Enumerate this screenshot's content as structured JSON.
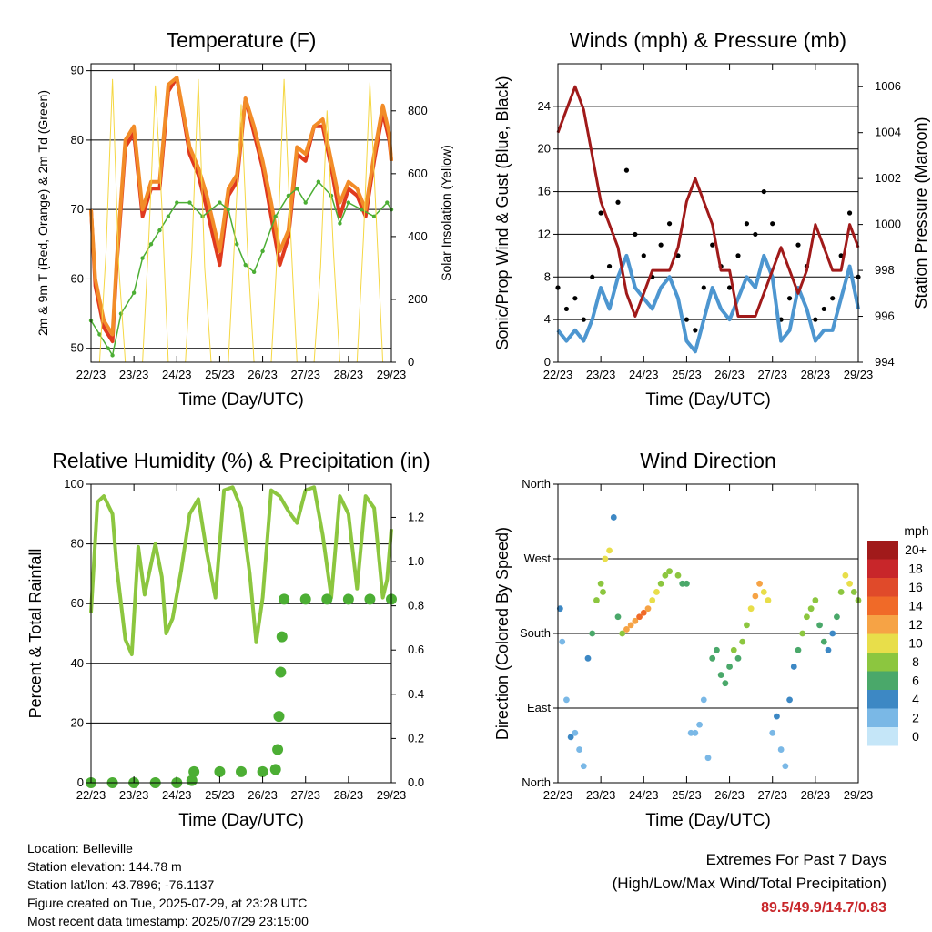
{
  "info": {
    "location": "Location: Belleville",
    "elevation": "Station elevation: 144.78 m",
    "latlon": "Station lat/lon: 43.7896; -76.1137",
    "created": "Figure created on Tue, 2025-07-29, at 23:28 UTC",
    "recent": "Most recent data timestamp: 2025/07/29 23:15:00"
  },
  "extremes": {
    "title": "Extremes For Past 7 Days",
    "subtitle": "(High/Low/Max Wind/Total Precipitation)",
    "values": "89.5/49.9/14.7/0.83"
  },
  "colors": {
    "temp2m": "#e03a1e",
    "temp9m": "#f28c28",
    "dewpoint": "#4cae34",
    "solar": "#f5d742",
    "gust": "#000000",
    "wind": "#4d96d0",
    "pressure": "#a01a1a",
    "rh": "#8cc63f",
    "precip": "#4cae34"
  },
  "chart_data": [
    {
      "type": "line",
      "title": "Temperature (F)",
      "xlabel": "Time (Day/UTC)",
      "ylabel": "2m & 9m T (Red, Orange) & 2m Td (Green)",
      "y2label": "Solar Insolation (Yellow)",
      "x_ticks": [
        "22/23",
        "23/23",
        "24/23",
        "25/23",
        "26/23",
        "27/23",
        "28/23",
        "29/23"
      ],
      "xlim": [
        0,
        7
      ],
      "ylim": [
        48,
        91
      ],
      "y_ticks": [
        50,
        60,
        70,
        80,
        90
      ],
      "y2lim": [
        0,
        950
      ],
      "y2_ticks": [
        0,
        200,
        400,
        600,
        800
      ],
      "grid": true,
      "series": [
        {
          "name": "2m T",
          "axis": "left",
          "x": [
            0,
            0.1,
            0.3,
            0.5,
            0.6,
            0.8,
            1.0,
            1.2,
            1.4,
            1.6,
            1.8,
            2.0,
            2.3,
            2.5,
            2.7,
            3.0,
            3.2,
            3.4,
            3.6,
            3.8,
            4.0,
            4.2,
            4.4,
            4.6,
            4.8,
            5.0,
            5.2,
            5.4,
            5.6,
            5.8,
            6.0,
            6.2,
            6.4,
            6.6,
            6.8,
            6.95,
            7.0
          ],
          "y": [
            70,
            59,
            53,
            51,
            62,
            79,
            81,
            69,
            73,
            73,
            87,
            89,
            78,
            75,
            70,
            62,
            72,
            74,
            86,
            81,
            76,
            69,
            62,
            66,
            78,
            77,
            82,
            82,
            76,
            69,
            73,
            72,
            69,
            77,
            84,
            80,
            77
          ]
        },
        {
          "name": "9m T",
          "axis": "left",
          "x": [
            0,
            0.1,
            0.3,
            0.5,
            0.6,
            0.8,
            1.0,
            1.2,
            1.4,
            1.6,
            1.8,
            2.0,
            2.3,
            2.5,
            2.7,
            3.0,
            3.2,
            3.4,
            3.6,
            3.8,
            4.0,
            4.2,
            4.4,
            4.6,
            4.8,
            5.0,
            5.2,
            5.4,
            5.6,
            5.8,
            6.0,
            6.2,
            6.4,
            6.6,
            6.8,
            6.95,
            7.0
          ],
          "y": [
            70,
            60,
            54,
            52,
            63,
            80,
            82,
            70,
            74,
            74,
            88,
            89,
            79,
            76,
            72,
            64,
            73,
            75,
            86,
            82,
            77,
            71,
            64,
            67,
            79,
            78,
            82,
            83,
            77,
            71,
            74,
            73,
            70,
            78,
            85,
            81,
            77
          ]
        },
        {
          "name": "2m Td",
          "axis": "left",
          "x": [
            0,
            0.2,
            0.4,
            0.5,
            0.7,
            1.0,
            1.2,
            1.4,
            1.6,
            1.8,
            2.0,
            2.3,
            2.6,
            3.0,
            3.2,
            3.4,
            3.6,
            3.8,
            4.0,
            4.3,
            4.6,
            4.8,
            5.0,
            5.3,
            5.6,
            5.8,
            6.0,
            6.3,
            6.6,
            6.9,
            7.0
          ],
          "y": [
            54,
            52,
            50,
            49,
            55,
            58,
            63,
            65,
            67,
            69,
            71,
            71,
            69,
            71,
            70,
            65,
            62,
            61,
            64,
            69,
            72,
            73,
            71,
            74,
            72,
            68,
            71,
            70,
            69,
            71,
            70
          ]
        },
        {
          "name": "Solar",
          "axis": "right",
          "x": [
            0.0,
            0.2,
            0.35,
            0.5,
            0.65,
            0.8,
            1.0,
            1.2,
            1.35,
            1.5,
            1.65,
            1.8,
            2.0,
            2.2,
            2.35,
            2.5,
            2.65,
            2.8,
            3.0,
            3.2,
            3.35,
            3.5,
            3.65,
            3.8,
            4.0,
            4.2,
            4.35,
            4.5,
            4.65,
            4.8,
            5.0,
            5.2,
            5.35,
            5.5,
            5.65,
            5.8,
            6.0,
            6.2,
            6.35,
            6.5,
            6.65,
            6.8,
            7.0
          ],
          "y": [
            0,
            0,
            350,
            900,
            300,
            0,
            0,
            0,
            400,
            880,
            500,
            0,
            0,
            0,
            350,
            900,
            300,
            0,
            0,
            0,
            400,
            820,
            350,
            0,
            0,
            0,
            380,
            900,
            420,
            0,
            0,
            0,
            300,
            800,
            350,
            0,
            0,
            0,
            400,
            890,
            450,
            0,
            0
          ]
        }
      ]
    },
    {
      "type": "line",
      "title": "Winds (mph) & Pressure (mb)",
      "xlabel": "Time (Day/UTC)",
      "ylabel": "Sonic/Prop Wind & Gust (Blue, Black)",
      "y2label": "Station Pressure (Maroon)",
      "x_ticks": [
        "22/23",
        "23/23",
        "24/23",
        "25/23",
        "26/23",
        "27/23",
        "28/23",
        "29/23"
      ],
      "xlim": [
        0,
        7
      ],
      "ylim": [
        0,
        28
      ],
      "y_ticks": [
        0,
        4,
        8,
        12,
        16,
        20,
        24
      ],
      "y2lim": [
        994,
        1007
      ],
      "y2_ticks": [
        994,
        996,
        998,
        1000,
        1002,
        1004,
        1006
      ],
      "grid": true,
      "series": [
        {
          "name": "Gust",
          "axis": "left",
          "x": [
            0,
            0.2,
            0.4,
            0.6,
            0.8,
            1.0,
            1.2,
            1.4,
            1.6,
            1.8,
            2.0,
            2.2,
            2.4,
            2.6,
            2.8,
            3.0,
            3.2,
            3.4,
            3.6,
            3.8,
            4.0,
            4.2,
            4.4,
            4.6,
            4.8,
            5.0,
            5.2,
            5.4,
            5.6,
            5.8,
            6.0,
            6.2,
            6.4,
            6.6,
            6.8,
            7.0
          ],
          "y": [
            7,
            5,
            6,
            4,
            8,
            14,
            9,
            15,
            18,
            12,
            10,
            8,
            11,
            13,
            10,
            4,
            3,
            7,
            11,
            9,
            7,
            10,
            13,
            12,
            16,
            13,
            4,
            6,
            11,
            9,
            4,
            5,
            6,
            10,
            14,
            8
          ]
        },
        {
          "name": "Wind",
          "axis": "left",
          "x": [
            0,
            0.2,
            0.4,
            0.6,
            0.8,
            1.0,
            1.2,
            1.4,
            1.6,
            1.8,
            2.0,
            2.2,
            2.4,
            2.6,
            2.8,
            3.0,
            3.2,
            3.4,
            3.6,
            3.8,
            4.0,
            4.2,
            4.4,
            4.6,
            4.8,
            5.0,
            5.2,
            5.4,
            5.6,
            5.8,
            6.0,
            6.2,
            6.4,
            6.6,
            6.8,
            7.0
          ],
          "y": [
            3,
            2,
            3,
            2,
            4,
            7,
            5,
            8,
            10,
            7,
            6,
            5,
            7,
            8,
            6,
            2,
            1,
            4,
            7,
            5,
            4,
            6,
            8,
            7,
            10,
            8,
            2,
            3,
            7,
            5,
            2,
            3,
            3,
            6,
            9,
            5
          ]
        },
        {
          "name": "Pressure",
          "axis": "right",
          "x": [
            0,
            0.2,
            0.4,
            0.6,
            0.8,
            1.0,
            1.2,
            1.4,
            1.6,
            1.8,
            2.0,
            2.2,
            2.4,
            2.6,
            2.8,
            3.0,
            3.2,
            3.4,
            3.6,
            3.8,
            4.0,
            4.2,
            4.4,
            4.6,
            4.8,
            5.0,
            5.2,
            5.4,
            5.6,
            5.8,
            6.0,
            6.2,
            6.4,
            6.6,
            6.8,
            7.0
          ],
          "y": [
            1004,
            1005,
            1006,
            1005,
            1003,
            1001,
            1000,
            999,
            997,
            996,
            997,
            998,
            998,
            998,
            999,
            1001,
            1002,
            1001,
            1000,
            998,
            998,
            996,
            996,
            996,
            997,
            998,
            999,
            998,
            997,
            998,
            1000,
            999,
            998,
            998,
            1000,
            999
          ]
        }
      ]
    },
    {
      "type": "line",
      "title": "Relative Humidity (%) & Precipitation (in)",
      "xlabel": "Time (Day/UTC)",
      "ylabel": "Percent & Total Rainfall",
      "x_ticks": [
        "22/23",
        "23/23",
        "24/23",
        "25/23",
        "26/23",
        "27/23",
        "28/23",
        "29/23"
      ],
      "xlim": [
        0,
        7
      ],
      "ylim": [
        0,
        100
      ],
      "y_ticks": [
        0,
        20,
        40,
        60,
        80,
        100
      ],
      "y2lim": [
        0,
        1.35
      ],
      "y2_ticks": [
        0.0,
        0.2,
        0.4,
        0.6,
        0.8,
        1.0,
        1.2
      ],
      "grid": true,
      "series": [
        {
          "name": "RH",
          "axis": "left",
          "x": [
            0,
            0.15,
            0.3,
            0.5,
            0.6,
            0.8,
            0.95,
            1.1,
            1.25,
            1.5,
            1.65,
            1.75,
            1.9,
            2.1,
            2.3,
            2.5,
            2.7,
            2.9,
            3.1,
            3.3,
            3.5,
            3.7,
            3.85,
            4.0,
            4.2,
            4.4,
            4.6,
            4.8,
            5.0,
            5.2,
            5.4,
            5.6,
            5.8,
            6.0,
            6.2,
            6.4,
            6.6,
            6.8,
            6.9,
            7.0
          ],
          "y": [
            57,
            94,
            96,
            90,
            72,
            48,
            43,
            79,
            63,
            80,
            69,
            50,
            55,
            71,
            90,
            95,
            77,
            62,
            98,
            99,
            92,
            70,
            47,
            62,
            98,
            96,
            91,
            87,
            98,
            99,
            83,
            62,
            96,
            90,
            65,
            96,
            92,
            62,
            68,
            85
          ]
        },
        {
          "name": "Precip",
          "axis": "right",
          "x": [
            0,
            0.5,
            1.0,
            1.5,
            2.0,
            2.35,
            2.4,
            3.0,
            3.5,
            4.0,
            4.3,
            4.35,
            4.38,
            4.42,
            4.45,
            4.5,
            5.0,
            5.5,
            6.0,
            6.5,
            7.0
          ],
          "y": [
            0.0,
            0.0,
            0.0,
            0.0,
            0.0,
            0.01,
            0.05,
            0.05,
            0.05,
            0.05,
            0.06,
            0.15,
            0.3,
            0.5,
            0.66,
            0.83,
            0.83,
            0.83,
            0.83,
            0.83,
            0.83
          ]
        }
      ]
    },
    {
      "type": "scatter",
      "title": "Wind Direction",
      "xlabel": "Time (Day/UTC)",
      "ylabel": "Direction (Colored By Speed)",
      "x_ticks": [
        "22/23",
        "23/23",
        "24/23",
        "25/23",
        "26/23",
        "27/23",
        "28/23",
        "29/23"
      ],
      "xlim": [
        0,
        7
      ],
      "ylim": [
        0,
        360
      ],
      "y_ticks": [
        0,
        90,
        180,
        270,
        360
      ],
      "y_tick_labels": [
        "North",
        "East",
        "South",
        "West",
        "North"
      ],
      "legend_title": "mph",
      "legend_labels": [
        "20+",
        "18",
        "16",
        "14",
        "12",
        "10",
        "8",
        "6",
        "4",
        "2",
        "0"
      ],
      "legend_colors": [
        "#a11a1a",
        "#c8262a",
        "#e04a2a",
        "#f06a28",
        "#f6a345",
        "#e8de4a",
        "#8cc63f",
        "#4aa86a",
        "#3d88c4",
        "#7ab8e6",
        "#c5e6f8"
      ],
      "legend_placement": "right",
      "grid": true,
      "series": [
        {
          "name": "Direction",
          "x": [
            0.05,
            0.1,
            0.2,
            0.3,
            0.4,
            0.5,
            0.6,
            0.7,
            0.8,
            0.9,
            1.0,
            1.05,
            1.1,
            1.2,
            1.3,
            1.4,
            1.5,
            1.6,
            1.7,
            1.8,
            1.9,
            2.0,
            2.1,
            2.2,
            2.3,
            2.4,
            2.5,
            2.6,
            2.8,
            2.9,
            3.0,
            3.1,
            3.2,
            3.3,
            3.4,
            3.5,
            3.6,
            3.7,
            3.8,
            3.9,
            4.0,
            4.1,
            4.2,
            4.3,
            4.4,
            4.5,
            4.6,
            4.7,
            4.8,
            4.9,
            5.0,
            5.1,
            5.2,
            5.3,
            5.4,
            5.5,
            5.6,
            5.7,
            5.8,
            5.9,
            6.0,
            6.1,
            6.2,
            6.3,
            6.4,
            6.5,
            6.6,
            6.7,
            6.8,
            6.9,
            7.0
          ],
          "y": [
            210,
            170,
            100,
            55,
            60,
            40,
            20,
            150,
            180,
            220,
            240,
            230,
            270,
            280,
            320,
            200,
            180,
            185,
            190,
            195,
            200,
            205,
            210,
            220,
            230,
            240,
            250,
            255,
            250,
            240,
            240,
            60,
            60,
            70,
            100,
            30,
            150,
            160,
            130,
            120,
            140,
            160,
            150,
            170,
            190,
            210,
            225,
            240,
            230,
            220,
            60,
            80,
            40,
            20,
            100,
            140,
            160,
            180,
            200,
            210,
            220,
            190,
            170,
            160,
            180,
            200,
            230,
            250,
            240,
            230,
            220
          ],
          "speed": [
            3,
            2,
            2,
            3,
            2,
            2,
            1,
            3,
            5,
            8,
            7,
            8,
            9,
            10,
            4,
            6,
            8,
            11,
            12,
            12,
            14,
            13,
            12,
            10,
            9,
            8,
            7,
            8,
            7,
            6,
            5,
            2,
            1,
            2,
            2,
            1,
            5,
            6,
            6,
            5,
            6,
            7,
            6,
            7,
            8,
            10,
            12,
            12,
            10,
            9,
            2,
            3,
            2,
            2,
            3,
            4,
            5,
            7,
            8,
            8,
            7,
            6,
            5,
            4,
            4,
            5,
            8,
            10,
            9,
            8,
            7
          ]
        }
      ]
    }
  ]
}
